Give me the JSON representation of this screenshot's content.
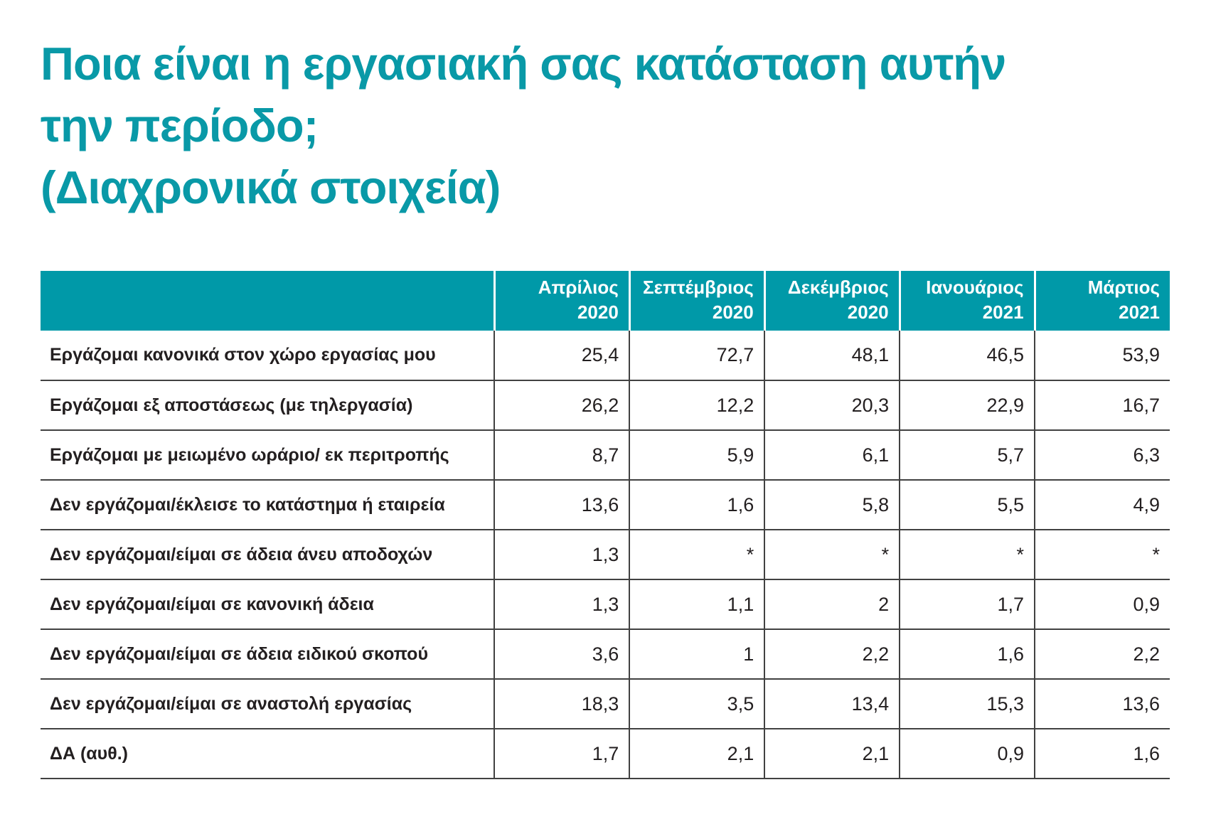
{
  "title": {
    "lines": [
      "Ποια είναι η εργασιακή σας κατάσταση αυτήν",
      "την περίοδο;",
      "(Διαχρονικά στοιχεία)"
    ]
  },
  "colors": {
    "accent_teal": "#0099A8",
    "title_teal": "#0999A7",
    "text_dark": "#231F20",
    "grid_line": "#414141",
    "header_text": "#FFFFFF"
  },
  "table": {
    "columns": [
      {
        "month": "Απρίλιος",
        "year": "2020"
      },
      {
        "month": "Σεπτέμβριος",
        "year": "2020"
      },
      {
        "month": "Δεκέμβριος",
        "year": "2020"
      },
      {
        "month": "Ιανουάριος",
        "year": "2021"
      },
      {
        "month": "Μάρτιος",
        "year": "2021"
      }
    ],
    "rows": [
      {
        "label": "Εργάζομαι κανονικά στον χώρο εργασίας μου",
        "values": [
          "25,4",
          "72,7",
          "48,1",
          "46,5",
          "53,9"
        ]
      },
      {
        "label": "Εργάζομαι εξ αποστάσεως (με τηλεργασία)",
        "values": [
          "26,2",
          "12,2",
          "20,3",
          "22,9",
          "16,7"
        ]
      },
      {
        "label": "Εργάζομαι με μειωμένο ωράριο/ εκ περιτροπής",
        "values": [
          "8,7",
          "5,9",
          "6,1",
          "5,7",
          "6,3"
        ]
      },
      {
        "label": "Δεν εργάζομαι/έκλεισε το κατάστημα ή εταιρεία",
        "values": [
          "13,6",
          "1,6",
          "5,8",
          "5,5",
          "4,9"
        ]
      },
      {
        "label": "Δεν εργάζομαι/είμαι σε άδεια άνευ αποδοχών",
        "values": [
          "1,3",
          "*",
          "*",
          "*",
          "*"
        ]
      },
      {
        "label": "Δεν εργάζομαι/είμαι σε κανονική άδεια",
        "values": [
          "1,3",
          "1,1",
          "2",
          "1,7",
          "0,9"
        ]
      },
      {
        "label": "Δεν εργάζομαι/είμαι σε άδεια ειδικού σκοπού",
        "values": [
          "3,6",
          "1",
          "2,2",
          "1,6",
          "2,2"
        ]
      },
      {
        "label": "Δεν εργάζομαι/είμαι σε αναστολή εργασίας",
        "values": [
          "18,3",
          "3,5",
          "13,4",
          "15,3",
          "13,6"
        ]
      },
      {
        "label": "ΔΑ (αυθ.)",
        "values": [
          "1,7",
          "2,1",
          "2,1",
          "0,9",
          "1,6"
        ]
      }
    ]
  }
}
